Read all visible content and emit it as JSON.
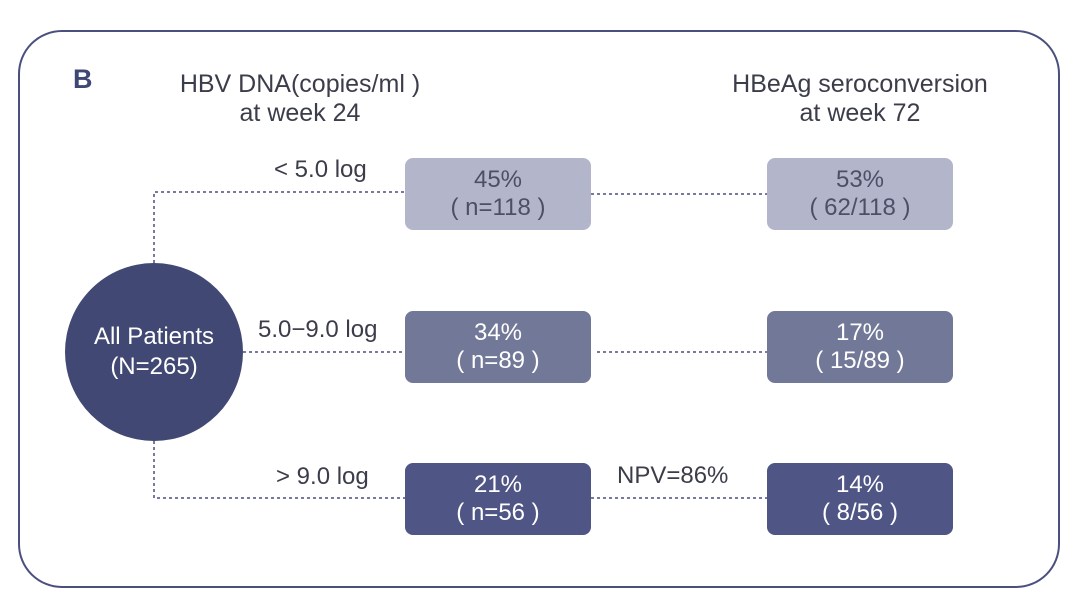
{
  "panel_label": "B",
  "headers": {
    "left_line1": "HBV DNA(copies/ml )",
    "left_line2": "at week 24",
    "right_line1": "HBeAg seroconversion",
    "right_line2": "at week 72"
  },
  "root": {
    "line1": "All Patients",
    "line2": "(N=265)"
  },
  "branches": [
    {
      "label": "< 5.0 log",
      "dna_pct": "45%",
      "dna_n": "( n=118 )",
      "sero_pct": "53%",
      "sero_n": "( 62/118 )"
    },
    {
      "label": "5.0−9.0 log",
      "dna_pct": "34%",
      "dna_n": "( n=89 )",
      "sero_pct": "17%",
      "sero_n": "( 15/89 )"
    },
    {
      "label": "> 9.0 log",
      "dna_pct": "21%",
      "dna_n": "( n=56 )",
      "sero_pct": "14%",
      "sero_n": "( 8/56 )",
      "connector_label": "NPV=86%"
    }
  ],
  "colors": {
    "frame": "#4a4f7e",
    "circle": "#414873",
    "tier1": "#b3b6cb",
    "tier2": "#727898",
    "tier3": "#4f5584",
    "connector": "#4a4f7e"
  }
}
